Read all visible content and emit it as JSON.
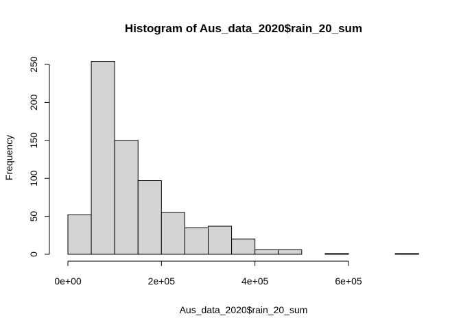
{
  "chart_data": {
    "type": "bar",
    "title": "Histogram of Aus_data_2020$rain_20_sum",
    "xlabel": "Aus_data_2020$rain_20_sum",
    "ylabel": "Frequency",
    "bin_width": 50000,
    "bins": [
      {
        "x0": 0,
        "x1": 50000,
        "count": 52
      },
      {
        "x0": 50000,
        "x1": 100000,
        "count": 254
      },
      {
        "x0": 100000,
        "x1": 150000,
        "count": 150
      },
      {
        "x0": 150000,
        "x1": 200000,
        "count": 97
      },
      {
        "x0": 200000,
        "x1": 250000,
        "count": 55
      },
      {
        "x0": 250000,
        "x1": 300000,
        "count": 35
      },
      {
        "x0": 300000,
        "x1": 350000,
        "count": 37
      },
      {
        "x0": 350000,
        "x1": 400000,
        "count": 20
      },
      {
        "x0": 400000,
        "x1": 450000,
        "count": 6
      },
      {
        "x0": 450000,
        "x1": 500000,
        "count": 6
      },
      {
        "x0": 500000,
        "x1": 550000,
        "count": 0
      },
      {
        "x0": 550000,
        "x1": 600000,
        "count": 1
      },
      {
        "x0": 600000,
        "x1": 650000,
        "count": 0
      },
      {
        "x0": 650000,
        "x1": 700000,
        "count": 0
      },
      {
        "x0": 700000,
        "x1": 750000,
        "count": 1
      }
    ],
    "x_ticks": [
      {
        "value": 0,
        "label": "0e+00"
      },
      {
        "value": 200000,
        "label": "2e+05"
      },
      {
        "value": 400000,
        "label": "4e+05"
      },
      {
        "value": 600000,
        "label": "6e+05"
      }
    ],
    "y_ticks": [
      {
        "value": 0,
        "label": "0"
      },
      {
        "value": 50,
        "label": "50"
      },
      {
        "value": 100,
        "label": "100"
      },
      {
        "value": 150,
        "label": "150"
      },
      {
        "value": 200,
        "label": "200"
      },
      {
        "value": 250,
        "label": "250"
      }
    ],
    "xlim": [
      0,
      750000
    ],
    "ylim": [
      0,
      254
    ],
    "bar_fill": "#d3d3d3",
    "bar_stroke": "#000000",
    "grid": false,
    "legend": "none"
  }
}
